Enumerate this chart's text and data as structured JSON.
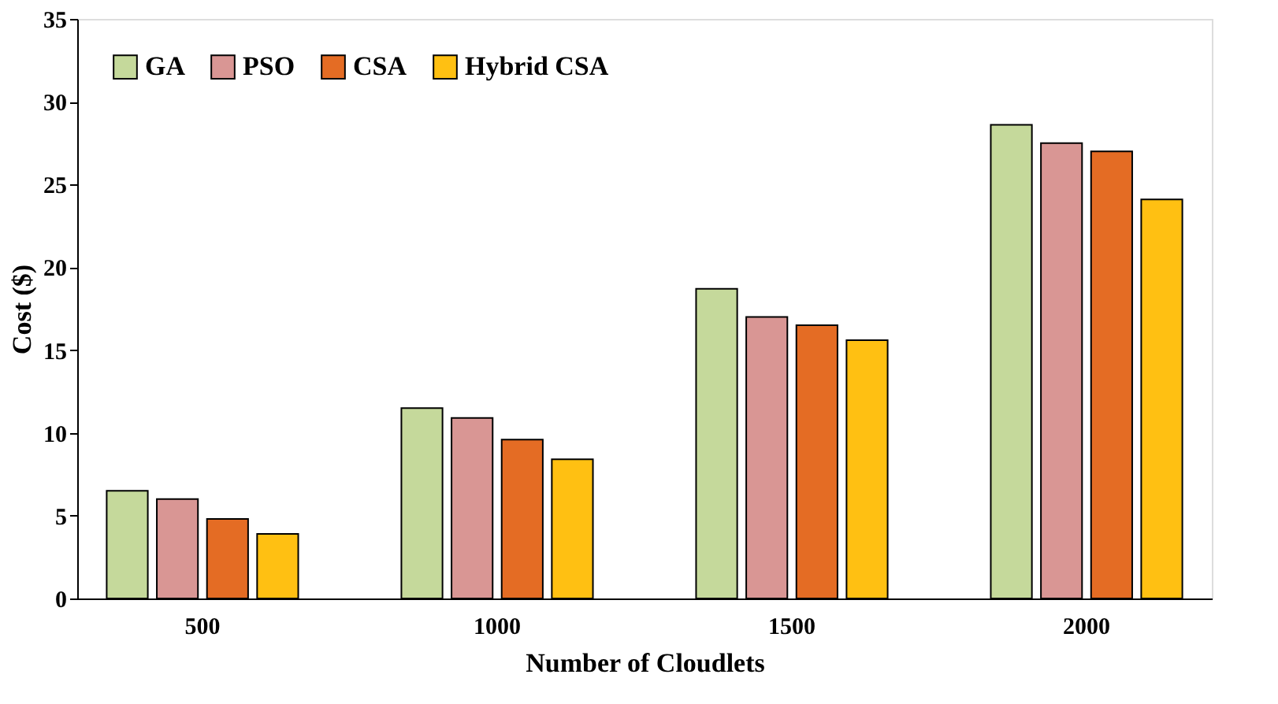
{
  "chart_data": {
    "type": "bar",
    "xlabel": "Number of Cloudlets",
    "ylabel": "Cost ($)",
    "categories": [
      "500",
      "1000",
      "1500",
      "2000"
    ],
    "series": [
      {
        "name": "GA",
        "color": "#c5d99b",
        "values": [
          6.5,
          11.5,
          18.7,
          28.6
        ]
      },
      {
        "name": "PSO",
        "color": "#d99694",
        "values": [
          6.0,
          10.9,
          17.0,
          27.5
        ]
      },
      {
        "name": "CSA",
        "color": "#e46c24",
        "values": [
          4.8,
          9.6,
          16.5,
          27.0
        ]
      },
      {
        "name": "Hybrid CSA",
        "color": "#ffc012",
        "values": [
          3.9,
          8.4,
          15.6,
          24.1
        ]
      }
    ],
    "ylim": [
      0,
      35
    ],
    "yticks": [
      0,
      5,
      10,
      15,
      20,
      25,
      30,
      35
    ],
    "grid": false,
    "legend": "top left"
  }
}
